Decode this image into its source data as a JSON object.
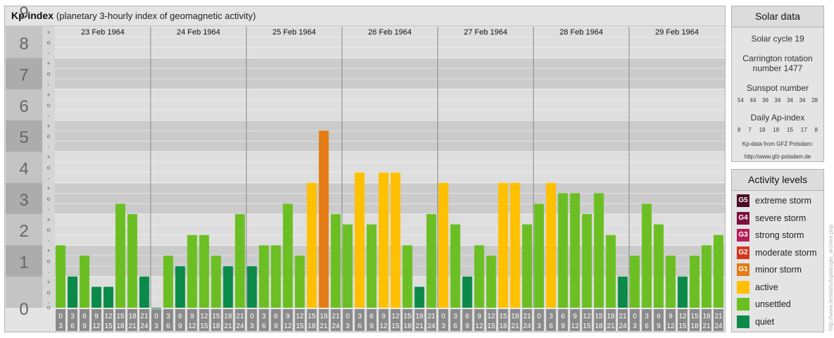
{
  "title": "Kp-index",
  "subtitle": "(planetary 3-hourly index of geomagnetic activity)",
  "chart_data": {
    "type": "bar",
    "ylim": [
      0,
      9
    ],
    "y_ticks": [
      "0",
      "1",
      "2",
      "3",
      "4",
      "5",
      "6",
      "7",
      "8",
      "9"
    ],
    "sub_ticks": [
      "+",
      "o",
      "-"
    ],
    "days": [
      "23 Feb 1964",
      "24 Feb 1964",
      "25 Feb 1964",
      "26 Feb 1964",
      "27 Feb 1964",
      "28 Feb 1964",
      "29 Feb 1964"
    ],
    "interval_top": [
      "0",
      "3",
      "6",
      "9",
      "12",
      "15",
      "18",
      "21"
    ],
    "interval_bottom": [
      "3",
      "6",
      "9",
      "12",
      "15",
      "18",
      "21",
      "24"
    ],
    "values": [
      2.0,
      1.0,
      1.67,
      0.67,
      0.67,
      3.33,
      3.0,
      1.0,
      0.0,
      1.67,
      1.33,
      2.33,
      2.33,
      1.67,
      1.33,
      3.0,
      1.33,
      2.0,
      2.0,
      3.33,
      1.67,
      4.0,
      5.67,
      3.0,
      2.67,
      4.33,
      2.67,
      4.33,
      4.33,
      2.0,
      0.67,
      3.0,
      4.0,
      2.67,
      1.0,
      2.0,
      1.67,
      4.0,
      4.0,
      2.67,
      3.33,
      4.0,
      3.67,
      3.67,
      3.0,
      3.67,
      2.33,
      1.0,
      1.67,
      3.33,
      2.67,
      1.67,
      1.0,
      1.67,
      2.0,
      2.33
    ],
    "colors": {
      "quiet": "#0b8a4a",
      "unsettled": "#6bbf23",
      "active": "#ffc000",
      "minor": "#e57b14",
      "moderate": "#d6351f",
      "strong": "#b51e5a",
      "severe": "#7d1040",
      "extreme": "#4a0a22"
    }
  },
  "solar": {
    "heading": "Solar data",
    "cycle": "Solar cycle 19",
    "carrington_1": "Carrington rotation",
    "carrington_2": "number 1477",
    "sunspot_label": "Sunspot number",
    "sunspots": [
      "54",
      "44",
      "36",
      "34",
      "34",
      "34",
      "28"
    ],
    "ap_label": "Daily Ap-index",
    "ap": [
      "8",
      "7",
      "19",
      "18",
      "15",
      "17",
      "8"
    ],
    "source_1": "Kp-data from GFZ Potsdam:",
    "source_2": "http://www.gfz-potsdam.de"
  },
  "levels": {
    "heading": "Activity levels",
    "items": [
      {
        "code": "G5",
        "label": "extreme storm",
        "color": "#4a0a22"
      },
      {
        "code": "G4",
        "label": "severe storm",
        "color": "#7d1040"
      },
      {
        "code": "G3",
        "label": "strong storm",
        "color": "#b51e5a"
      },
      {
        "code": "G2",
        "label": "moderate storm",
        "color": "#d6351f"
      },
      {
        "code": "G1",
        "label": "minor storm",
        "color": "#e57b14"
      },
      {
        "code": "",
        "label": "active",
        "color": "#ffc000"
      },
      {
        "code": "",
        "label": "unsettled",
        "color": "#6bbf23"
      },
      {
        "code": "",
        "label": "quiet",
        "color": "#0b8a4a"
      }
    ]
  },
  "credit": "http://www.tieslastu/luplarogio_arcnive.pnp"
}
